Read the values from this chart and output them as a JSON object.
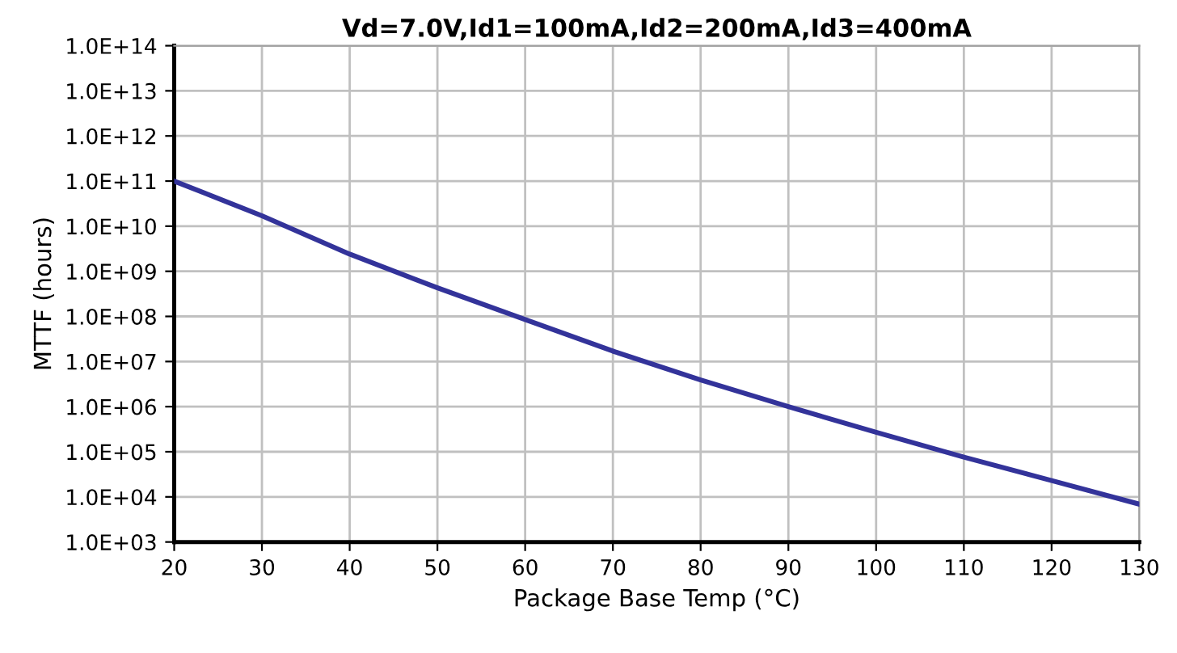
{
  "chart_data": {
    "type": "line",
    "title": "Vd=7.0V,Id1=100mA,Id2=200mA,Id3=400mA",
    "xlabel": "Package Base Temp (°C)",
    "ylabel": "MTTF (hours)",
    "x": [
      20,
      30,
      40,
      50,
      60,
      70,
      80,
      90,
      100,
      110,
      120,
      130
    ],
    "series": [
      {
        "color": "#33339a",
        "values": [
          100000000000.0,
          17000000000.0,
          2400000000.0,
          430000000.0,
          85000000.0,
          17000000.0,
          3900000.0,
          1000000.0,
          270000.0,
          76000.0,
          23000.0,
          6900.0
        ]
      }
    ],
    "log": "y",
    "xlim": [
      20,
      130
    ],
    "xticks": [
      20,
      30,
      40,
      50,
      60,
      70,
      80,
      90,
      100,
      110,
      120,
      130
    ],
    "ylim": [
      1000.0,
      100000000000000.0
    ],
    "yticks": [
      {
        "value": 1000.0,
        "label": "1.0E+03"
      },
      {
        "value": 10000.0,
        "label": "1.0E+04"
      },
      {
        "value": 100000.0,
        "label": "1.0E+05"
      },
      {
        "value": 1000000.0,
        "label": "1.0E+06"
      },
      {
        "value": 10000000.0,
        "label": "1.0E+07"
      },
      {
        "value": 100000000.0,
        "label": "1.0E+08"
      },
      {
        "value": 1000000000.0,
        "label": "1.0E+09"
      },
      {
        "value": 10000000000.0,
        "label": "1.0E+10"
      },
      {
        "value": 100000000000.0,
        "label": "1.0E+11"
      },
      {
        "value": 1000000000000.0,
        "label": "1.0E+12"
      },
      {
        "value": 10000000000000.0,
        "label": "1.0E+13"
      },
      {
        "value": 100000000000000.0,
        "label": "1.0E+14"
      }
    ],
    "grid": true,
    "marker": "none",
    "line_style": "solid"
  }
}
